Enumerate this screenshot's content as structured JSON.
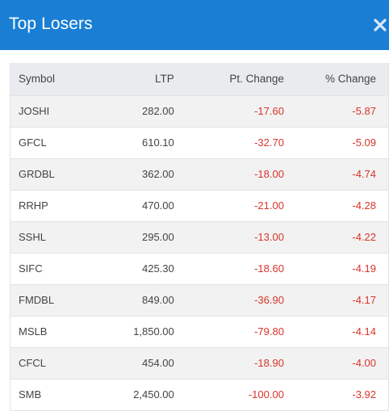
{
  "header": {
    "title": "Top Losers",
    "close_icon": "close-icon"
  },
  "table": {
    "columns": [
      "Symbol",
      "LTP",
      "Pt. Change",
      "% Change"
    ],
    "rows": [
      {
        "symbol": "JOSHI",
        "ltp": "282.00",
        "pt_change": "-17.60",
        "pct_change": "-5.87"
      },
      {
        "symbol": "GFCL",
        "ltp": "610.10",
        "pt_change": "-32.70",
        "pct_change": "-5.09"
      },
      {
        "symbol": "GRDBL",
        "ltp": "362.00",
        "pt_change": "-18.00",
        "pct_change": "-4.74"
      },
      {
        "symbol": "RRHP",
        "ltp": "470.00",
        "pt_change": "-21.00",
        "pct_change": "-4.28"
      },
      {
        "symbol": "SSHL",
        "ltp": "295.00",
        "pt_change": "-13.00",
        "pct_change": "-4.22"
      },
      {
        "symbol": "SIFC",
        "ltp": "425.30",
        "pt_change": "-18.60",
        "pct_change": "-4.19"
      },
      {
        "symbol": "FMDBL",
        "ltp": "849.00",
        "pt_change": "-36.90",
        "pct_change": "-4.17"
      },
      {
        "symbol": "MSLB",
        "ltp": "1,850.00",
        "pt_change": "-79.80",
        "pct_change": "-4.14"
      },
      {
        "symbol": "CFCL",
        "ltp": "454.00",
        "pt_change": "-18.90",
        "pct_change": "-4.00"
      },
      {
        "symbol": "SMB",
        "ltp": "2,450.00",
        "pt_change": "-100.00",
        "pct_change": "-3.92"
      }
    ]
  },
  "colors": {
    "header_bg": "#1a7fd4",
    "negative": "#d9342b",
    "header_row_bg": "#e9ecef"
  }
}
